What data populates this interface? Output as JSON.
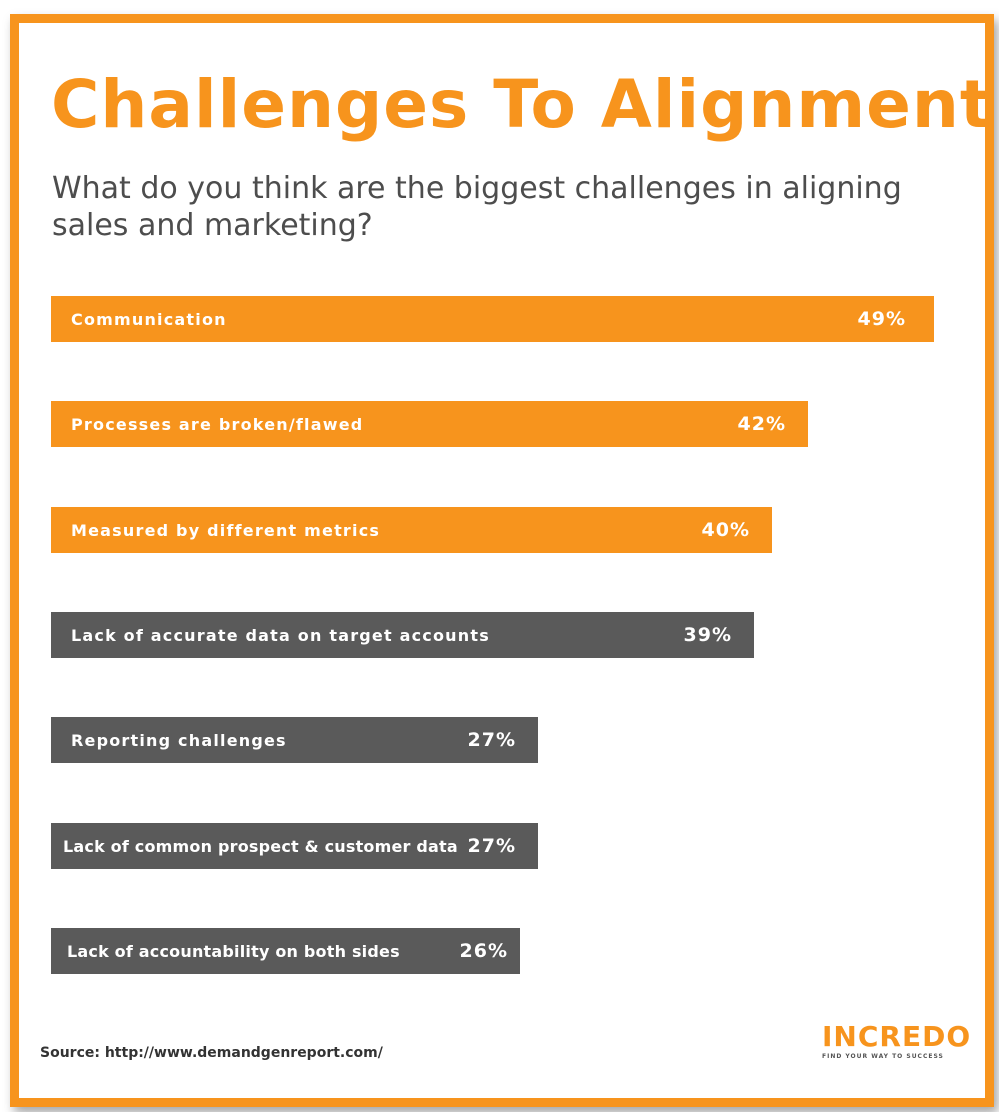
{
  "header": {
    "title": "Challenges To Alignment",
    "subtitle": "What do you think are the biggest challenges in aligning sales and marketing?"
  },
  "colors": {
    "accent": "#f7941d",
    "gray": "#5a5a5a"
  },
  "chart_data": {
    "type": "bar",
    "orientation": "horizontal",
    "categories": [
      "Communication",
      "Processes are broken/flawed",
      "Measured by different metrics",
      "Lack of accurate data on target accounts",
      "Reporting challenges",
      "Lack of common prospect & customer data",
      "Lack of accountability on both sides"
    ],
    "values": [
      49,
      42,
      40,
      39,
      27,
      27,
      26
    ],
    "value_labels": [
      "49%",
      "42%",
      "40%",
      "39%",
      "27%",
      "27%",
      "26%"
    ],
    "bar_colors": [
      "#f7941d",
      "#f7941d",
      "#f7941d",
      "#5a5a5a",
      "#5a5a5a",
      "#5a5a5a",
      "#5a5a5a"
    ],
    "unit": "%"
  },
  "footer": {
    "source": "Source: http://www.demandgenreport.com/",
    "logo_text": "INCREDO",
    "logo_tagline": "FIND YOUR WAY TO SUCCESS"
  }
}
